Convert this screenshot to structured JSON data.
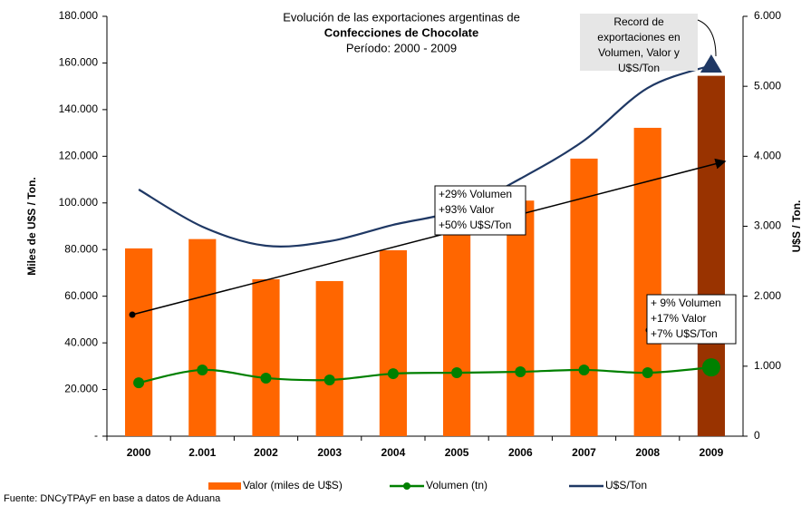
{
  "chart_data": {
    "type": "combo",
    "title_lines": [
      "Evolución de las exportaciones argentinas de",
      "Confecciones de Chocolate",
      "Período: 2000 - 2009"
    ],
    "ylabel": "Miles de U$S / Ton.",
    "y2label": "U$S / Ton.",
    "source": "Fuente: DNCyTPAyF en base a datos de Aduana",
    "categories": [
      "2000",
      "2.001",
      "2002",
      "2003",
      "2004",
      "2005",
      "2006",
      "2007",
      "2008",
      "2009"
    ],
    "ylim": [
      0,
      180000
    ],
    "yticks": [
      {
        "value": 0,
        "label": "-"
      },
      {
        "value": 20000,
        "label": "20.000"
      },
      {
        "value": 40000,
        "label": "40.000"
      },
      {
        "value": 60000,
        "label": "60.000"
      },
      {
        "value": 80000,
        "label": "80.000"
      },
      {
        "value": 100000,
        "label": "100.000"
      },
      {
        "value": 120000,
        "label": "120.000"
      },
      {
        "value": 140000,
        "label": "140.000"
      },
      {
        "value": 160000,
        "label": "160.000"
      },
      {
        "value": 180000,
        "label": "180.000"
      }
    ],
    "y2lim": [
      0,
      6000
    ],
    "y2ticks": [
      0,
      {
        "value": 1000,
        "label": "1.000"
      },
      {
        "value": 2000,
        "label": "2.000"
      },
      {
        "value": 3000,
        "label": "3.000"
      },
      {
        "value": 4000,
        "label": "4.000"
      },
      {
        "value": 5000,
        "label": "5.000"
      },
      {
        "value": 6000,
        "label": "6.000"
      }
    ],
    "series": [
      {
        "name": "Valor (miles de U$S)",
        "type": "bar",
        "color": "#ff6600",
        "colors": [
          "#ff6600",
          "#ff6600",
          "#ff6600",
          "#ff6600",
          "#ff6600",
          "#ff6600",
          "#ff6600",
          "#ff6600",
          "#ff6600",
          "#993300"
        ],
        "values": [
          80500,
          84500,
          67300,
          66500,
          79700,
          88000,
          101000,
          119000,
          132200,
          154500
        ]
      },
      {
        "name": "Volumen (tn)",
        "type": "line",
        "color": "#008000",
        "values": [
          22900,
          28400,
          24900,
          24100,
          26800,
          27200,
          27600,
          28400,
          27200,
          29500
        ]
      },
      {
        "name": "U$S/Ton",
        "type": "line",
        "color": "#1f3864",
        "axis": "y2",
        "values": [
          3525,
          2994,
          2721,
          2786,
          3020,
          3227,
          3680,
          4225,
          4976,
          5300
        ]
      }
    ],
    "annotations": [
      {
        "lines": [
          "+29% Volumen",
          "+93% Valor",
          "+50% U$S/Ton"
        ]
      },
      {
        "lines": [
          "+ 9% Volumen",
          "+17% Valor",
          "+7% U$S/Ton"
        ]
      },
      {
        "lines": [
          "Record de",
          "exportaciones en",
          "Volumen, Valor y",
          "U$S/Ton"
        ]
      }
    ]
  }
}
